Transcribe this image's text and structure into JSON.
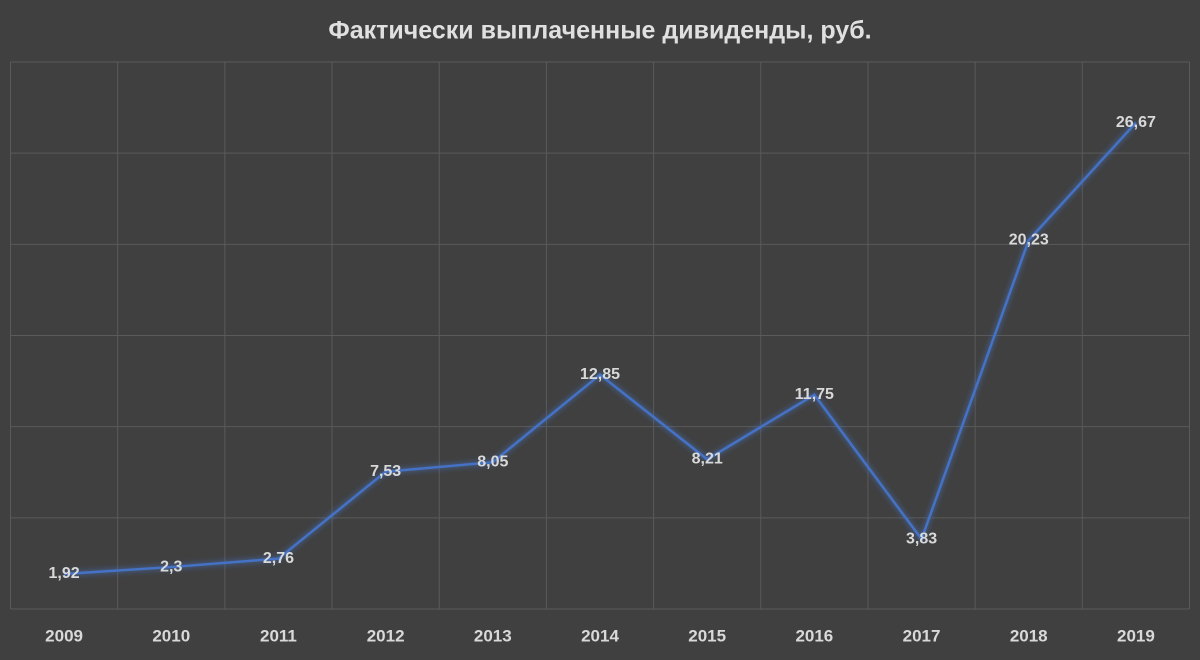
{
  "chart_data": {
    "type": "line",
    "title": "Фактически выплаченные дивиденды, руб.",
    "categories": [
      "2009",
      "2010",
      "2011",
      "2012",
      "2013",
      "2014",
      "2015",
      "2016",
      "2017",
      "2018",
      "2019"
    ],
    "values": [
      1.92,
      2.3,
      2.76,
      7.53,
      8.05,
      12.85,
      8.21,
      11.75,
      3.83,
      20.23,
      26.67
    ],
    "value_labels": [
      "1,92",
      "2,3",
      "2,76",
      "7,53",
      "8,05",
      "12,85",
      "8,21",
      "11,75",
      "3,83",
      "20,23",
      "26,67"
    ],
    "color": "#4472c4",
    "ylim": [
      0,
      30
    ],
    "yticks": [
      0,
      5,
      10,
      15,
      20,
      25,
      30
    ],
    "grid": true
  }
}
